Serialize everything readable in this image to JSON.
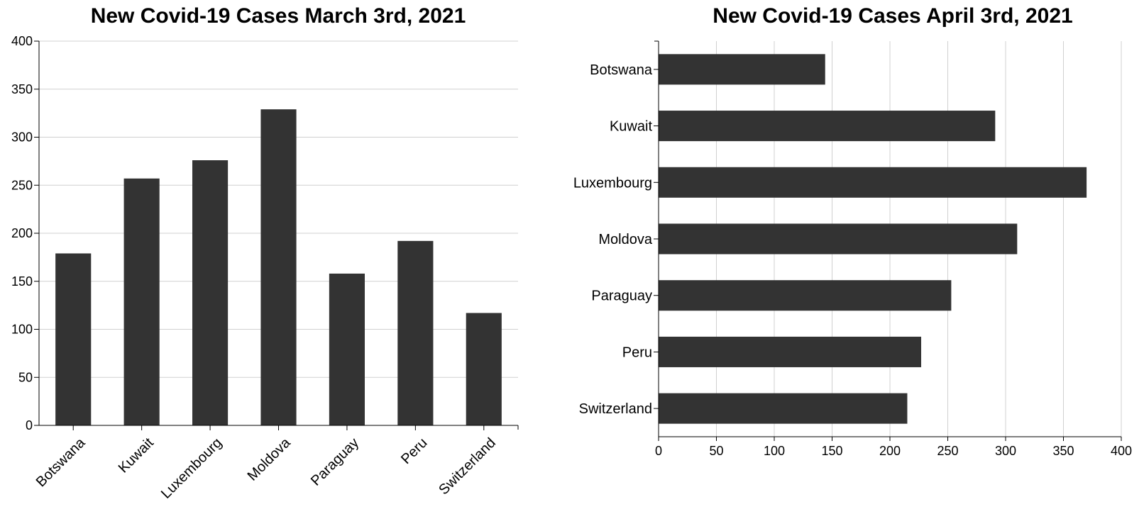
{
  "colors": {
    "bar": "#333333",
    "grid": "#d0d0d0",
    "axis": "#000000"
  },
  "chart_data": [
    {
      "type": "bar",
      "orientation": "vertical",
      "title": "New Covid-19 Cases March 3rd, 2021",
      "categories": [
        "Botswana",
        "Kuwait",
        "Luxembourg",
        "Moldova",
        "Paraguay",
        "Peru",
        "Switzerland"
      ],
      "values": [
        179,
        257,
        276,
        329,
        158,
        192,
        117
      ],
      "ylim": [
        0,
        400
      ],
      "yticks": [
        "0",
        "50",
        "100",
        "150",
        "200",
        "250",
        "300",
        "350",
        "400"
      ],
      "grid": "horizontal"
    },
    {
      "type": "bar",
      "orientation": "horizontal",
      "title": "New Covid-19 Cases April 3rd, 2021",
      "categories": [
        "Botswana",
        "Kuwait",
        "Luxembourg",
        "Moldova",
        "Paraguay",
        "Peru",
        "Switzerland"
      ],
      "values": [
        144,
        291,
        370,
        310,
        253,
        227,
        215
      ],
      "xlim": [
        0,
        400
      ],
      "xticks": [
        "0",
        "50",
        "100",
        "150",
        "200",
        "250",
        "300",
        "350",
        "400"
      ],
      "grid": "vertical"
    }
  ]
}
